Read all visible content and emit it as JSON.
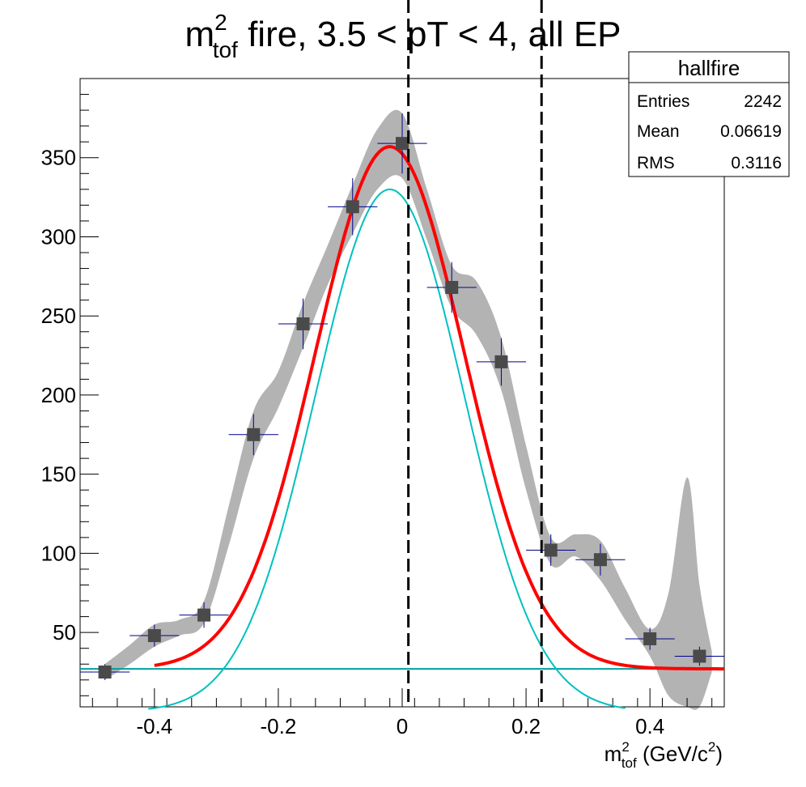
{
  "chart_data": {
    "type": "scatter",
    "title_main": "m",
    "title_sup": "2",
    "title_sub": "tof",
    "title_rest": " fire, 3.5 < pT < 4, all EP",
    "xlabel_main": "m",
    "xlabel_sup": "2",
    "xlabel_sub": "tof",
    "xlabel_rest": " (GeV/c",
    "xlabel_sup2": "2",
    "xlabel_end": ")",
    "xlim": [
      -0.52,
      0.52
    ],
    "ylim": [
      3,
      400
    ],
    "x_ticks": [
      -0.4,
      -0.2,
      0,
      0.2,
      0.4
    ],
    "x_tick_labels": [
      "-0.4",
      "-0.2",
      "0",
      "0.2",
      "0.4"
    ],
    "y_ticks": [
      50,
      100,
      150,
      200,
      250,
      300,
      350
    ],
    "y_tick_labels": [
      "50",
      "100",
      "150",
      "200",
      "250",
      "300",
      "350"
    ],
    "stats": {
      "name": "hallfire",
      "rows": [
        {
          "label": "Entries",
          "value": "2242"
        },
        {
          "label": "Mean",
          "value": "0.06619"
        },
        {
          "label": "RMS",
          "value": "0.3116"
        }
      ]
    },
    "points": [
      {
        "x": -0.48,
        "y": 25,
        "xerr": 0.04,
        "yerr": 5
      },
      {
        "x": -0.4,
        "y": 48,
        "xerr": 0.04,
        "yerr": 7
      },
      {
        "x": -0.32,
        "y": 61,
        "xerr": 0.04,
        "yerr": 8
      },
      {
        "x": -0.24,
        "y": 175,
        "xerr": 0.04,
        "yerr": 13
      },
      {
        "x": -0.16,
        "y": 245,
        "xerr": 0.04,
        "yerr": 16
      },
      {
        "x": -0.08,
        "y": 319,
        "xerr": 0.04,
        "yerr": 18
      },
      {
        "x": 0.0,
        "y": 359,
        "xerr": 0.04,
        "yerr": 19
      },
      {
        "x": 0.08,
        "y": 268,
        "xerr": 0.04,
        "yerr": 16
      },
      {
        "x": 0.16,
        "y": 221,
        "xerr": 0.04,
        "yerr": 15
      },
      {
        "x": 0.24,
        "y": 102,
        "xerr": 0.04,
        "yerr": 10
      },
      {
        "x": 0.32,
        "y": 96,
        "xerr": 0.04,
        "yerr": 10
      },
      {
        "x": 0.4,
        "y": 46,
        "xerr": 0.04,
        "yerr": 7
      },
      {
        "x": 0.48,
        "y": 35,
        "xerr": 0.04,
        "yerr": 6
      }
    ],
    "band": {
      "color": "#b3b3b3",
      "x": [
        -0.48,
        -0.44,
        -0.4,
        -0.36,
        -0.32,
        -0.28,
        -0.24,
        -0.2,
        -0.16,
        -0.12,
        -0.08,
        -0.04,
        0.0,
        0.04,
        0.08,
        0.12,
        0.16,
        0.2,
        0.24,
        0.28,
        0.32,
        0.36,
        0.4,
        0.43,
        0.46,
        0.48,
        0.5
      ],
      "upper": [
        30,
        42,
        55,
        58,
        70,
        130,
        190,
        215,
        258,
        295,
        333,
        368,
        378,
        330,
        282,
        272,
        236,
        168,
        110,
        112,
        108,
        78,
        52,
        75,
        148,
        80,
        38
      ],
      "lower": [
        20,
        30,
        41,
        48,
        56,
        105,
        160,
        192,
        230,
        270,
        302,
        330,
        337,
        298,
        255,
        238,
        203,
        140,
        93,
        98,
        83,
        58,
        35,
        10,
        3,
        3,
        25
      ]
    },
    "fit_total": {
      "color": "#ff0000",
      "xmin": -0.4,
      "xmax": 0.52,
      "amplitude": 330,
      "mean": -0.02,
      "sigma": 0.12,
      "baseline": 27
    },
    "fit_peak": {
      "color": "#00c0c0",
      "xmin": -0.41,
      "xmax": 0.36,
      "amplitude": 330,
      "mean": -0.02,
      "sigma": 0.12,
      "baseline": 0
    },
    "baseline_line": {
      "color": "#00a0a0",
      "y": 27,
      "xmin": -0.52,
      "xmax": 0.52
    },
    "cut_lines": [
      0.01,
      0.225
    ],
    "marker_color": "#4a4a4a",
    "error_color": "#00008b"
  }
}
